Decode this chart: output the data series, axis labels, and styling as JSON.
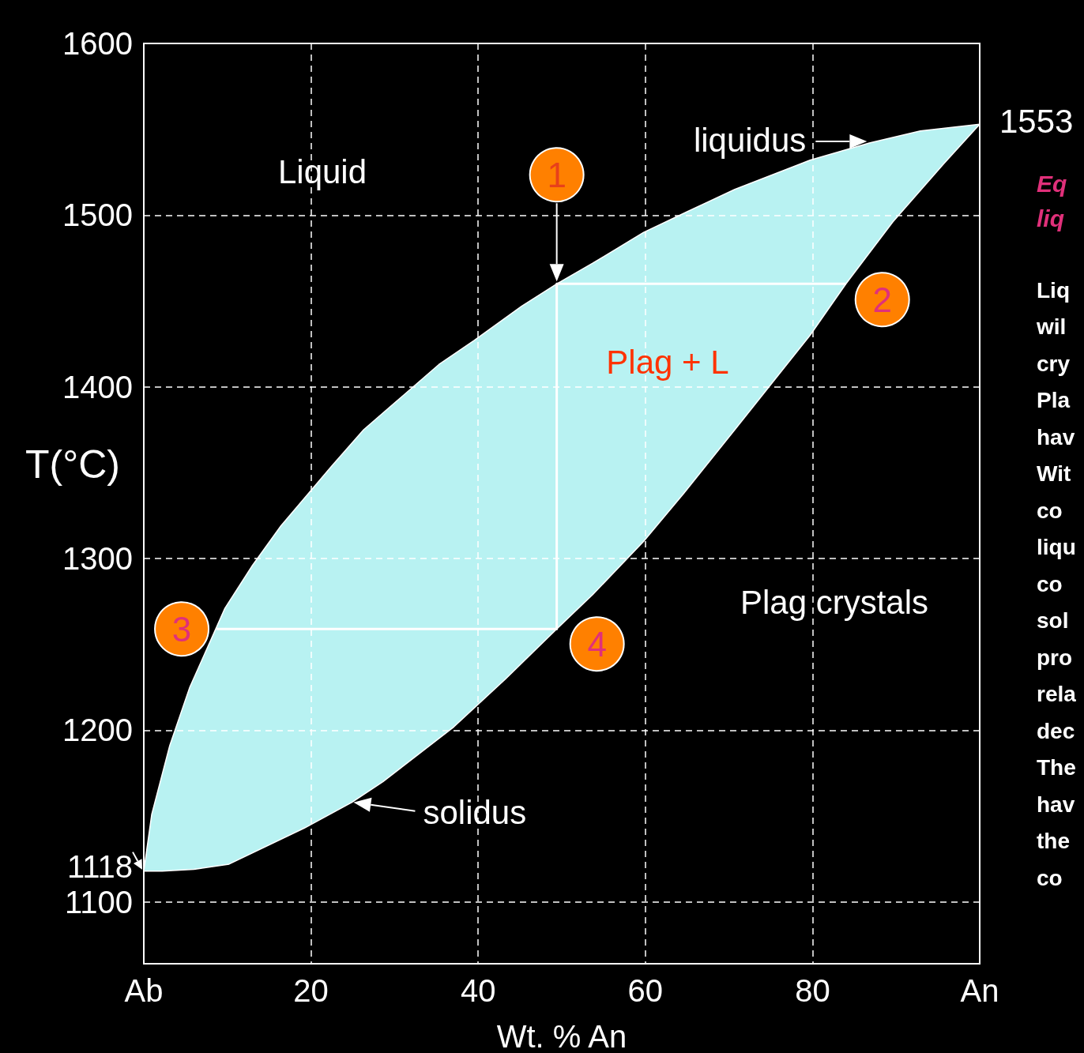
{
  "chart_data": {
    "type": "line",
    "xlabel": "Wt. % An",
    "ylabel": "T(°C)",
    "xlim": [
      0,
      100
    ],
    "ylim": [
      1064,
      1600
    ],
    "xticks": [
      {
        "value": 0,
        "label": "Ab"
      },
      20,
      40,
      60,
      80,
      {
        "value": 100,
        "label": "An"
      }
    ],
    "yticks": [
      1100,
      {
        "value": 1118,
        "label": "1118"
      },
      1200,
      1300,
      1400,
      1500,
      1600
    ],
    "grid": true,
    "marker": "none",
    "series": [
      {
        "type": "area",
        "color": "#b8f2f2",
        "x": [
          0,
          0.95,
          3.1,
          5.5,
          9.7,
          13,
          16.4,
          22.5,
          26.3,
          35.3,
          39.5,
          45.2,
          49.4,
          53.7,
          59.8,
          65,
          70.7,
          79.7,
          86.8,
          92.9,
          100
        ],
        "values": [
          1118,
          1151,
          1191,
          1225,
          1271,
          1296,
          1319,
          1354,
          1375,
          1413,
          1427,
          1447,
          1460,
          1472,
          1490,
          1502,
          1515,
          1532,
          1542,
          1549,
          1553
        ]
      },
      {
        "type": "line",
        "color": "#ffffff",
        "x": [
          0,
          2.2,
          6,
          10.2,
          19.2,
          24.9,
          28.6,
          37.1,
          43.3,
          49.4,
          53.7,
          59.8,
          64.6,
          70.7,
          79.7,
          84,
          89.6,
          95.7,
          100
        ],
        "values": [
          1118,
          1118,
          1119,
          1122,
          1143,
          1158,
          1170,
          1202,
          1230,
          1259,
          1279,
          1310,
          1338,
          1375,
          1430,
          1460,
          1496,
          1530,
          1553
        ]
      },
      {
        "color": "#ffffff",
        "x": [
          84,
          49.4,
          49.4,
          8.7
        ],
        "values": [
          1460,
          1460,
          1259,
          1259
        ]
      }
    ],
    "annotations": [
      {
        "text": "1553",
        "x": 100,
        "y": 1553
      },
      {
        "text": "liquidus",
        "x": 86.8,
        "y": 1542
      },
      {
        "text": "solidus",
        "x": 24.9,
        "y": 1158
      },
      {
        "text": "1",
        "x": 49.4,
        "y": 1460
      },
      {
        "text": "2",
        "x": 84,
        "y": 1460
      },
      {
        "text": "3",
        "x": 8.7,
        "y": 1259
      },
      {
        "text": "4",
        "x": 49.4,
        "y": 1259
      },
      "Liquid",
      "Plag + L",
      "Plag crystals",
      "Eq\nliq",
      "Liq\nwil\ncry\nPla\nhav\nWit\nco\nliqu\nco\nsol\npro\nrela\ndec\nThe\nhav\nthe\nco"
    ]
  }
}
